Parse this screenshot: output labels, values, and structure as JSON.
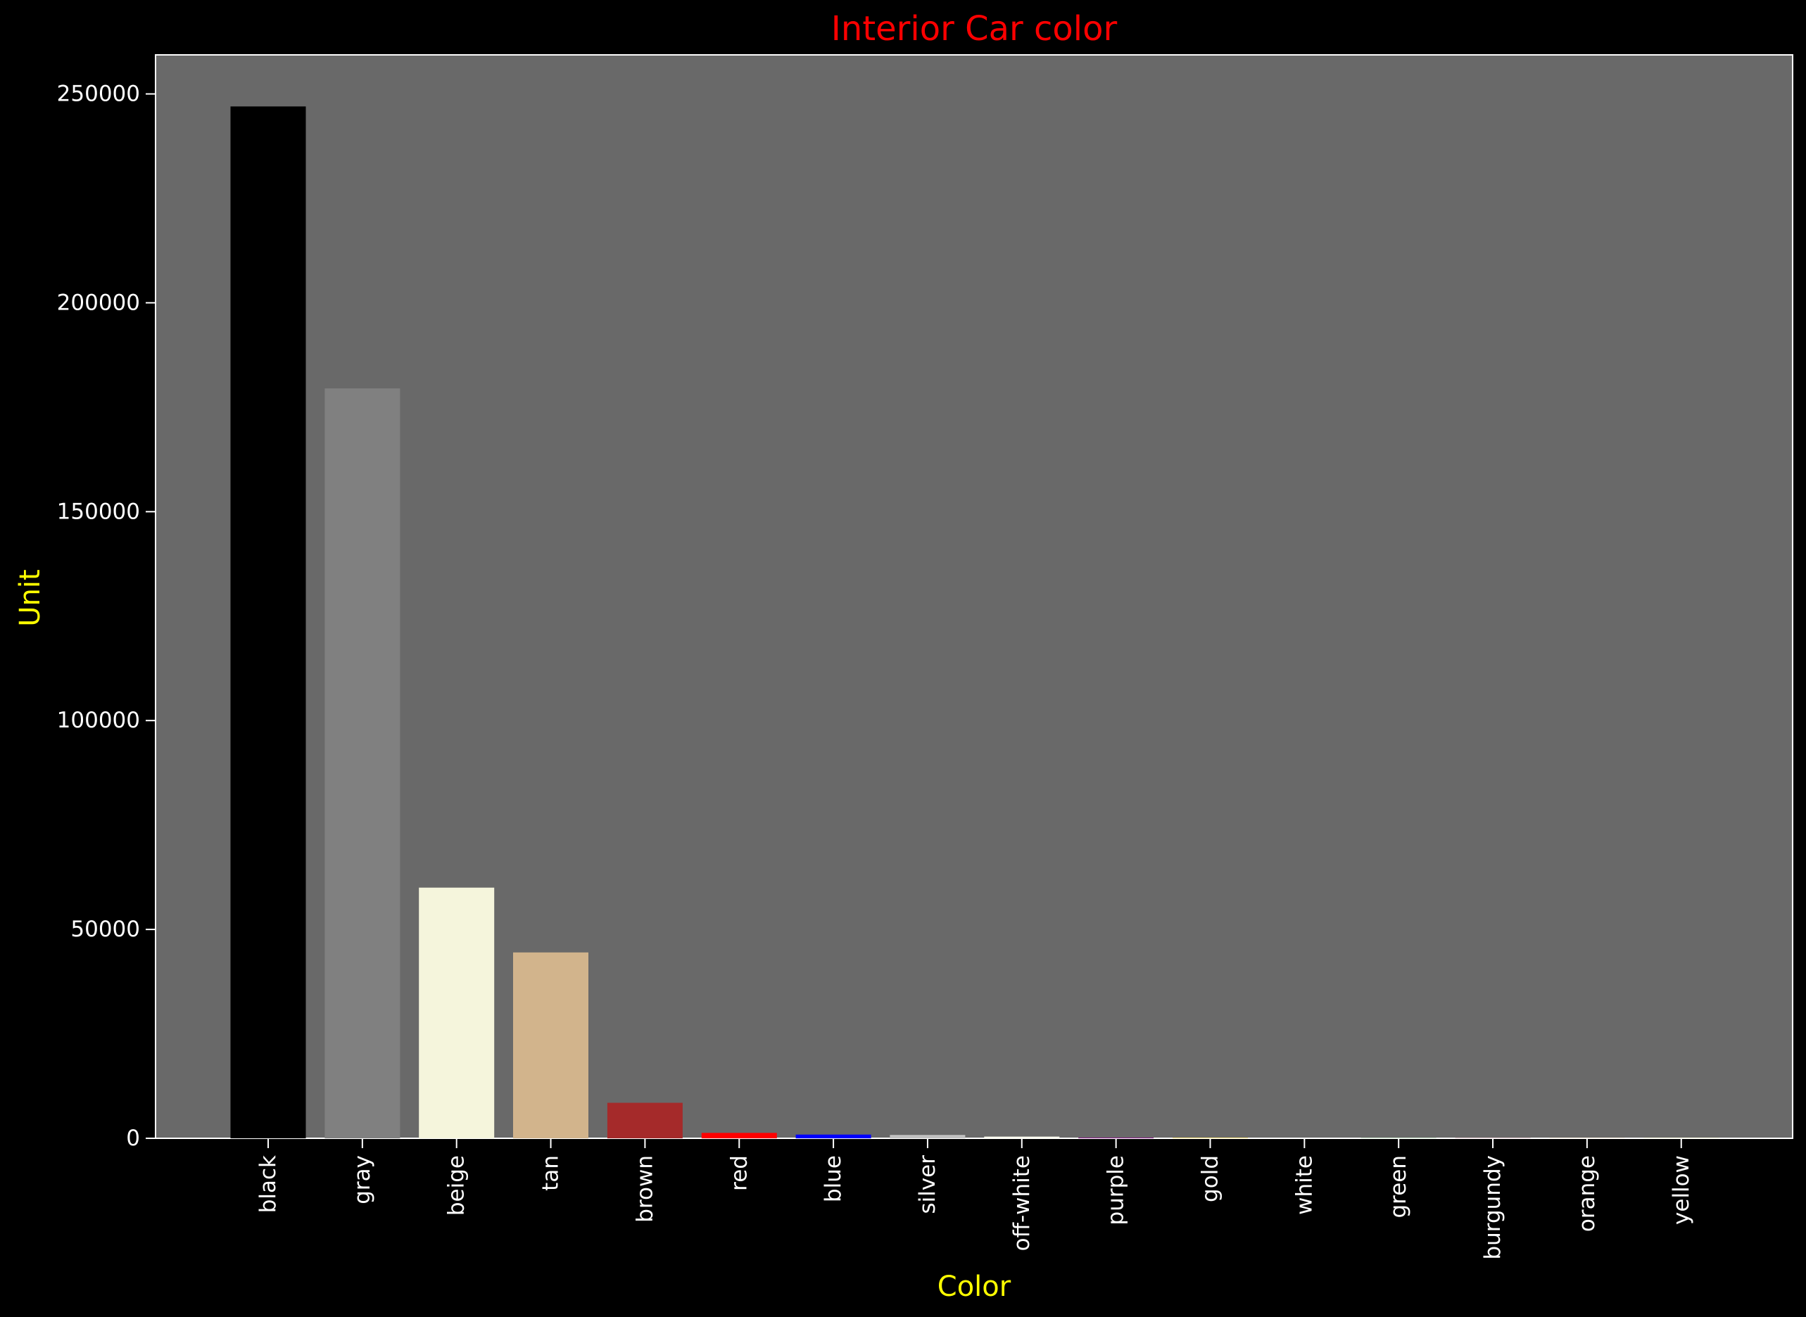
{
  "chart_data": {
    "type": "bar",
    "title": "Interior Car color",
    "xlabel": "Color",
    "ylabel": "Unit",
    "categories": [
      "black",
      "gray",
      "beige",
      "tan",
      "brown",
      "red",
      "blue",
      "silver",
      "off-white",
      "purple",
      "gold",
      "white",
      "green",
      "burgundy",
      "orange",
      "yellow"
    ],
    "values": [
      247000,
      179500,
      60000,
      44500,
      8500,
      1300,
      900,
      800,
      400,
      150,
      80,
      60,
      40,
      30,
      20,
      10
    ],
    "bar_colors": [
      "#000000",
      "#808080",
      "#f5f5dc",
      "#d2b48c",
      "#a52a2a",
      "#ff0000",
      "#0000ff",
      "#c0c0c0",
      "#fdfdf0",
      "#800080",
      "#ffd700",
      "#ffffff",
      "#008000",
      "#800020",
      "#ffa500",
      "#ffff00"
    ],
    "ylim": [
      0,
      259350
    ],
    "yticks": [
      0,
      50000,
      100000,
      150000,
      200000,
      250000
    ],
    "grid": false,
    "colors": {
      "figure_background": "#000000",
      "plot_background": "#696969",
      "axis": "#ffffff",
      "title": "#ff0000",
      "axis_labels": "#ffff00",
      "tick_labels": "#ffffff"
    }
  }
}
